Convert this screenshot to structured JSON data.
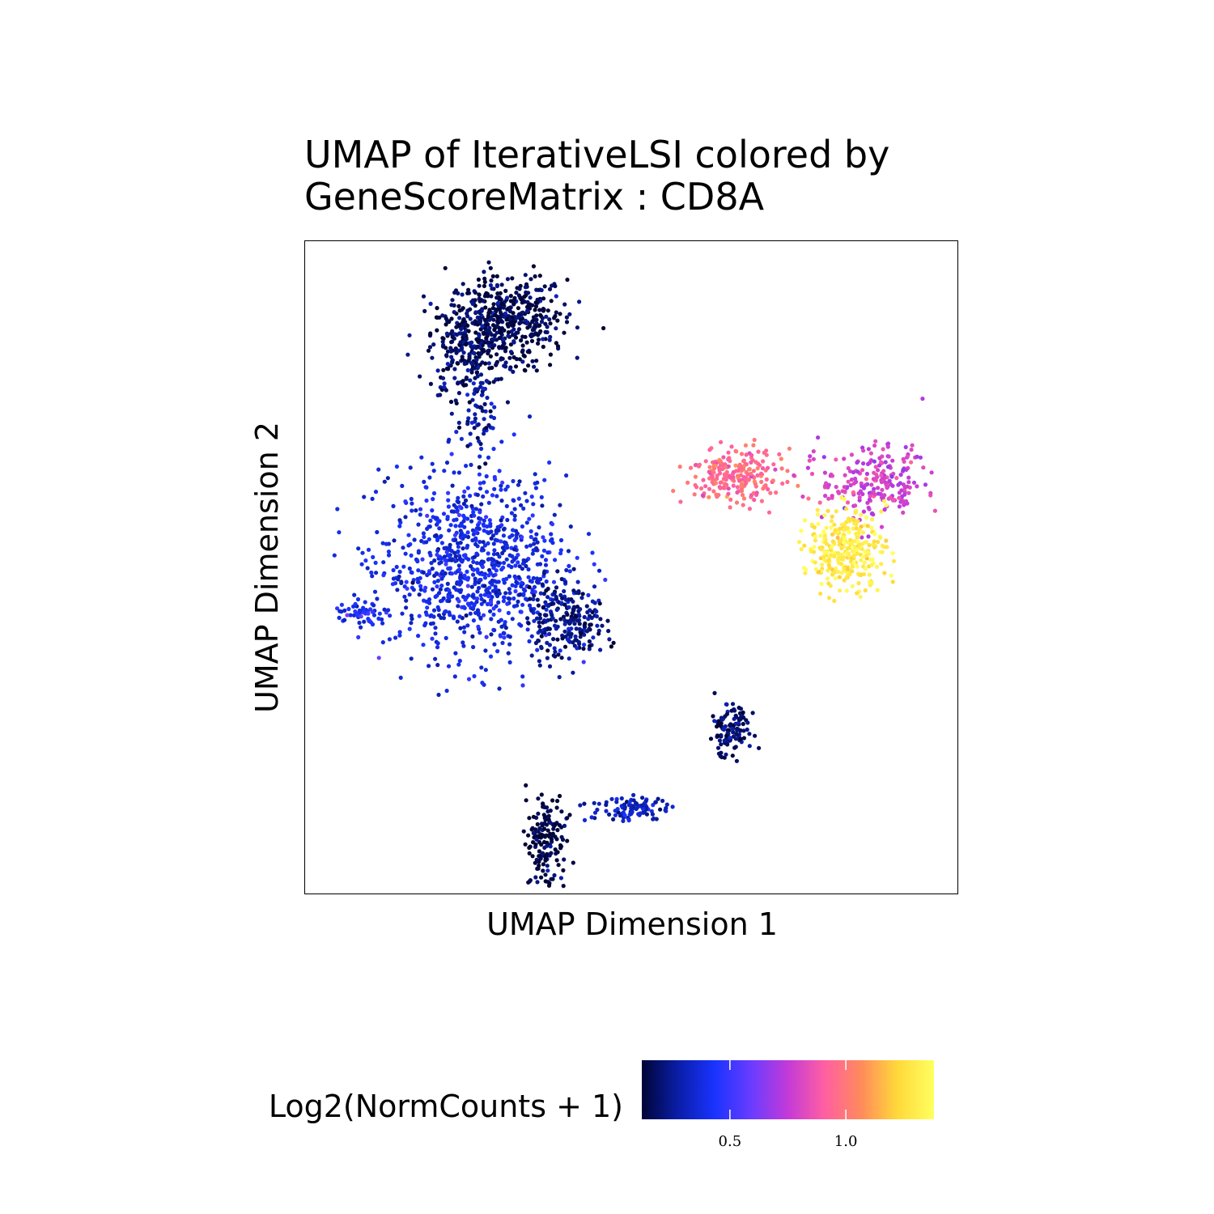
{
  "chart_data": {
    "type": "scatter",
    "title_lines": [
      "UMAP of IterativeLSI colored by",
      "GeneScoreMatrix : CD8A"
    ],
    "xlabel": "UMAP Dimension 1",
    "ylabel": "UMAP Dimension 2",
    "legend": {
      "title": "Log2(NormCounts + 1)",
      "placement": "bottom",
      "range": [
        0.12,
        1.38
      ],
      "ticks": [
        0.5,
        1.0
      ],
      "tick_labels": [
        "0.5",
        "1.0"
      ],
      "colormap": [
        "#000436",
        "#0a1ea8",
        "#1a33ff",
        "#6a3cff",
        "#c33ad8",
        "#ff5fa2",
        "#ff8a5c",
        "#ffd93a",
        "#ffff60"
      ]
    },
    "grid": false,
    "clusters": [
      {
        "x": 0.31,
        "y": 0.88,
        "sx": 0.045,
        "sy": 0.035,
        "n": 420,
        "value": 0.15
      },
      {
        "x": 0.25,
        "y": 0.84,
        "sx": 0.03,
        "sy": 0.04,
        "n": 260,
        "value": 0.17
      },
      {
        "x": 0.27,
        "y": 0.73,
        "sx": 0.012,
        "sy": 0.035,
        "n": 60,
        "value": 0.28
      },
      {
        "x": 0.26,
        "y": 0.5,
        "sx": 0.07,
        "sy": 0.07,
        "n": 900,
        "value": 0.38
      },
      {
        "x": 0.4,
        "y": 0.42,
        "sx": 0.03,
        "sy": 0.03,
        "n": 220,
        "value": 0.22
      },
      {
        "x": 0.09,
        "y": 0.43,
        "sx": 0.025,
        "sy": 0.008,
        "n": 50,
        "value": 0.42
      },
      {
        "x": 0.66,
        "y": 0.64,
        "sx": 0.035,
        "sy": 0.02,
        "n": 230,
        "value": 0.95
      },
      {
        "x": 0.87,
        "y": 0.63,
        "sx": 0.04,
        "sy": 0.03,
        "n": 230,
        "value": 0.78
      },
      {
        "x": 0.83,
        "y": 0.53,
        "sx": 0.03,
        "sy": 0.03,
        "n": 300,
        "value": 1.3
      },
      {
        "x": 0.65,
        "y": 0.25,
        "sx": 0.015,
        "sy": 0.02,
        "n": 120,
        "value": 0.18
      },
      {
        "x": 0.5,
        "y": 0.13,
        "sx": 0.03,
        "sy": 0.01,
        "n": 100,
        "value": 0.32
      },
      {
        "x": 0.37,
        "y": 0.08,
        "sx": 0.015,
        "sy": 0.04,
        "n": 160,
        "value": 0.14
      }
    ]
  }
}
